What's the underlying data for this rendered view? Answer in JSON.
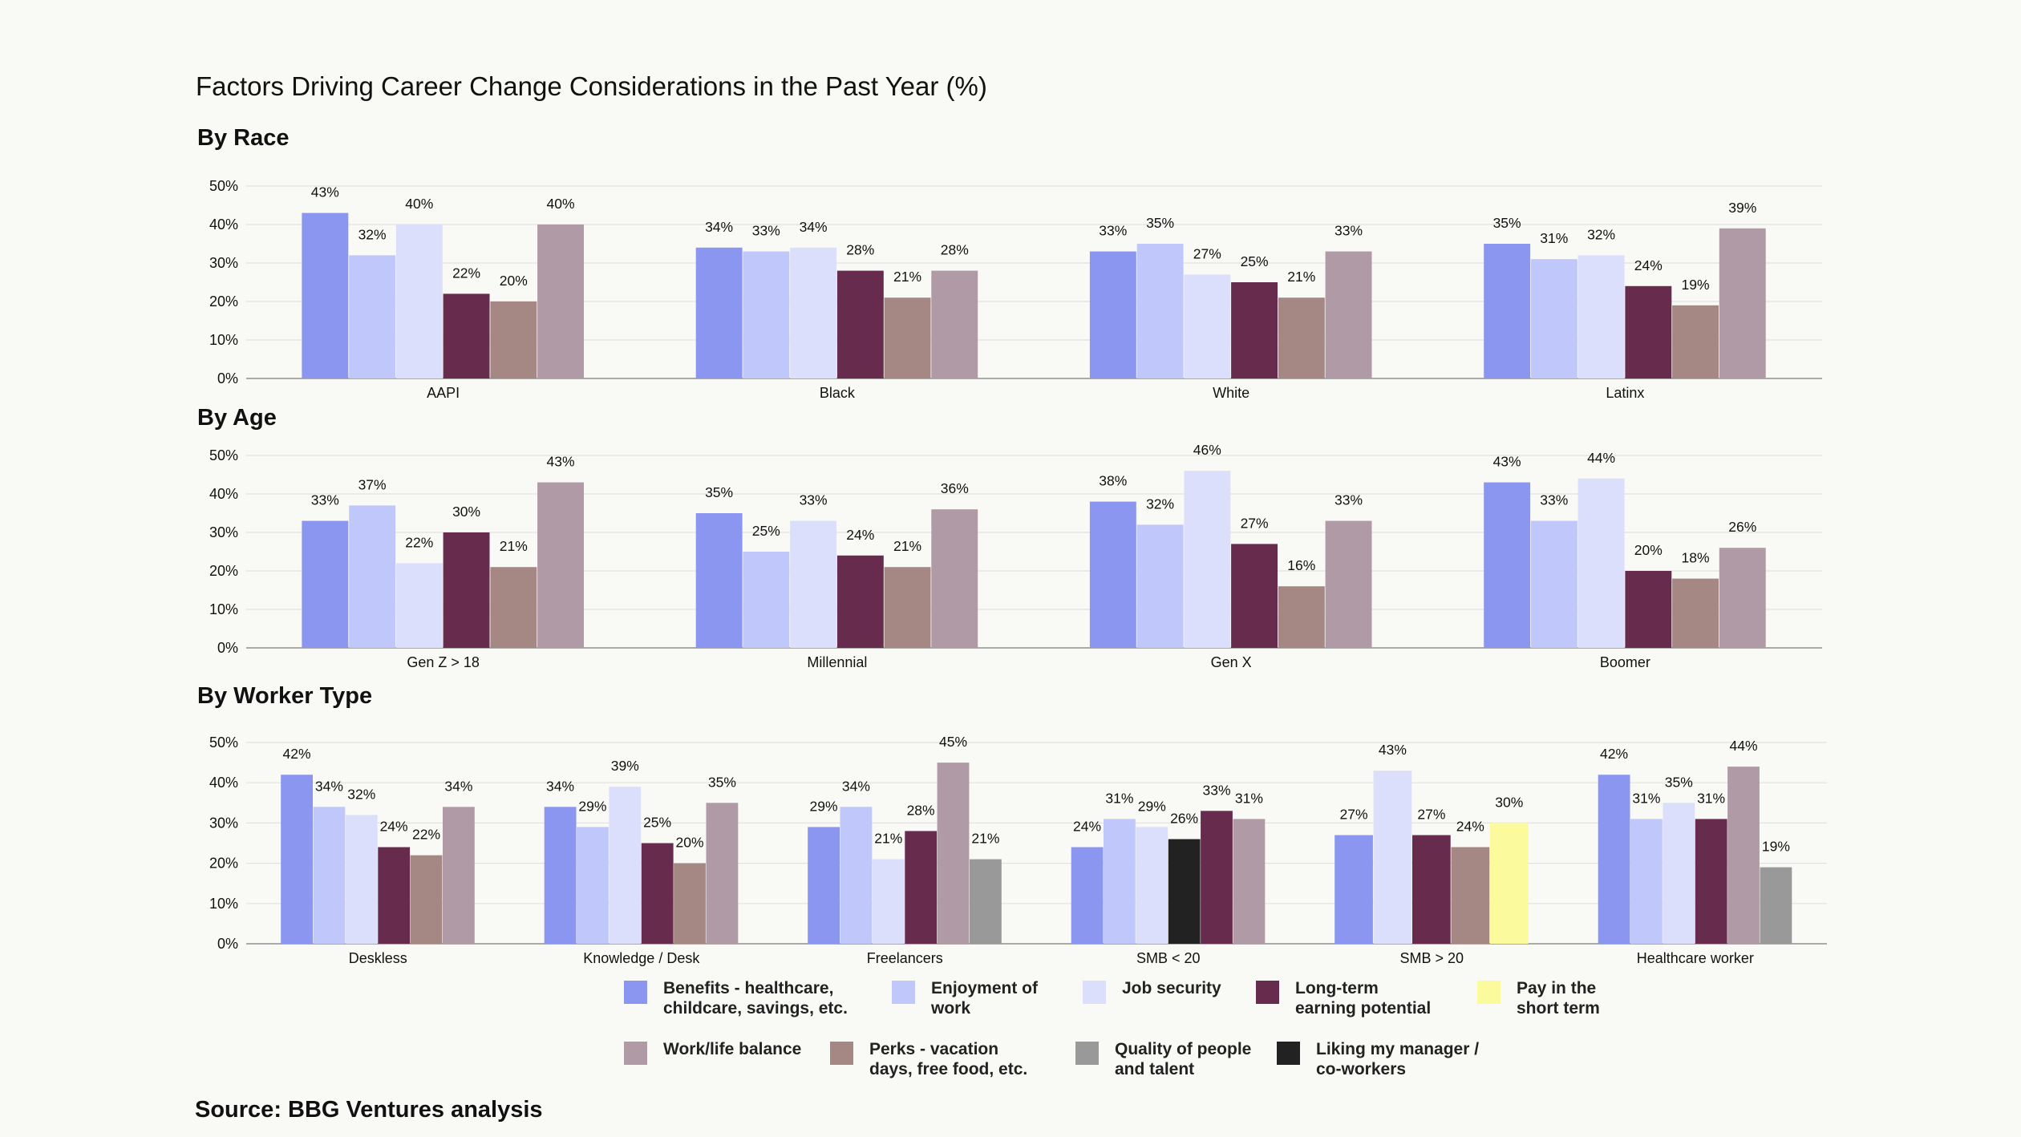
{
  "title": "Factors Driving Career Change Considerations in the Past Year (%)",
  "source": "Source: BBG Ventures analysis",
  "colors": {
    "benefits": "#8a96ef",
    "enjoyment": "#c0c7fb",
    "jobsec": "#dcdffc",
    "longterm": "#672b4e",
    "pay": "#fbfa9c",
    "worklife": "#b09aa6",
    "perks": "#a58884",
    "quality": "#999999",
    "manager": "#222222",
    "grid": "#e2e2e2",
    "axis": "#8f8f8f"
  },
  "legend": [
    {
      "key": "benefits",
      "lines": [
        "Benefits - healthcare,",
        "childcare, savings, etc."
      ]
    },
    {
      "key": "enjoyment",
      "lines": [
        "Enjoyment of",
        "work"
      ]
    },
    {
      "key": "jobsec",
      "lines": [
        "Job security"
      ]
    },
    {
      "key": "longterm",
      "lines": [
        "Long-term",
        "earning potential"
      ]
    },
    {
      "key": "pay",
      "lines": [
        "Pay in the",
        "short term"
      ]
    },
    {
      "key": "worklife",
      "lines": [
        "Work/life balance"
      ]
    },
    {
      "key": "perks",
      "lines": [
        "Perks - vacation",
        "days, free food, etc."
      ]
    },
    {
      "key": "quality",
      "lines": [
        "Quality of people",
        "and talent"
      ]
    },
    {
      "key": "manager",
      "lines": [
        "Liking my manager /",
        "co-workers"
      ]
    }
  ],
  "chart_data": [
    {
      "type": "bar",
      "title": "By Race",
      "ylim": [
        0,
        50
      ],
      "yticks": [
        "0%",
        "10%",
        "20%",
        "30%",
        "40%",
        "50%"
      ],
      "grid": true,
      "categories": [
        "AAPI",
        "Black",
        "White",
        "Latinx"
      ],
      "series": [
        {
          "name": "Benefits - healthcare, childcare, savings, etc.",
          "key": "benefits",
          "values": [
            43,
            34,
            33,
            35
          ],
          "labels": [
            "43%",
            "34%",
            "33%",
            "35%"
          ]
        },
        {
          "name": "Enjoyment of work",
          "key": "enjoyment",
          "values": [
            32,
            33,
            35,
            31
          ],
          "labels": [
            "32%",
            "33%",
            "35%",
            "31%"
          ]
        },
        {
          "name": "Job security",
          "key": "jobsec",
          "values": [
            40,
            34,
            27,
            32
          ],
          "labels": [
            "40%",
            "34%",
            "27%",
            "32%"
          ]
        },
        {
          "name": "Long-term earning potential",
          "key": "longterm",
          "values": [
            22,
            28,
            25,
            24
          ],
          "labels": [
            "22%",
            "28%",
            "25%",
            "24%"
          ]
        },
        {
          "name": "Perks - vacation days, free food, etc.",
          "key": "perks",
          "values": [
            20,
            21,
            21,
            19
          ],
          "labels": [
            "20%",
            "21%",
            "21%",
            "19%"
          ]
        },
        {
          "name": "Work/life balance",
          "key": "worklife",
          "values": [
            40,
            28,
            33,
            39
          ],
          "labels": [
            "40%",
            "28%",
            "33%",
            "39%"
          ]
        }
      ]
    },
    {
      "type": "bar",
      "title": "By Age",
      "ylim": [
        0,
        50
      ],
      "yticks": [
        "0%",
        "10%",
        "20%",
        "30%",
        "40%",
        "50%"
      ],
      "grid": true,
      "categories": [
        "Gen Z > 18",
        "Millennial",
        "Gen X",
        "Boomer"
      ],
      "series": [
        {
          "name": "Benefits - healthcare, childcare, savings, etc.",
          "key": "benefits",
          "values": [
            33,
            35,
            38,
            43
          ],
          "labels": [
            "33%",
            "35%",
            "38%",
            "43%"
          ]
        },
        {
          "name": "Enjoyment of work",
          "key": "enjoyment",
          "values": [
            37,
            25,
            32,
            33
          ],
          "labels": [
            "37%",
            "25%",
            "32%",
            "33%"
          ]
        },
        {
          "name": "Job security",
          "key": "jobsec",
          "values": [
            22,
            33,
            46,
            44
          ],
          "labels": [
            "22%",
            "33%",
            "46%",
            "44%"
          ]
        },
        {
          "name": "Long-term earning potential",
          "key": "longterm",
          "values": [
            30,
            24,
            27,
            20
          ],
          "labels": [
            "30%",
            "24%",
            "27%",
            "20%"
          ]
        },
        {
          "name": "Perks - vacation days, free food, etc.",
          "key": "perks",
          "values": [
            21,
            21,
            16,
            18
          ],
          "labels": [
            "21%",
            "21%",
            "16%",
            "18%"
          ]
        },
        {
          "name": "Work/life balance",
          "key": "worklife",
          "values": [
            43,
            36,
            33,
            26
          ],
          "labels": [
            "43%",
            "36%",
            "33%",
            "26%"
          ]
        }
      ]
    },
    {
      "type": "bar",
      "title": "By Worker Type",
      "ylim": [
        0,
        50
      ],
      "yticks": [
        "0%",
        "10%",
        "20%",
        "30%",
        "40%",
        "50%"
      ],
      "grid": true,
      "categories": [
        "Deskless",
        "Knowledge / Desk",
        "Freelancers",
        "SMB < 20",
        "SMB > 20",
        "Healthcare worker"
      ],
      "series": [
        {
          "name": "Benefits - healthcare, childcare, savings, etc.",
          "key": "benefits",
          "values": [
            42,
            34,
            29,
            24,
            27,
            42
          ],
          "labels": [
            "42%",
            "34%",
            "29%",
            "24%",
            "27%",
            "42%"
          ]
        },
        {
          "name": "Enjoyment of work",
          "key": "enjoyment",
          "values": [
            34,
            29,
            34,
            31,
            null,
            31
          ],
          "labels": [
            "34%",
            "29%",
            "34%",
            "31%",
            "",
            "31%"
          ]
        },
        {
          "name": "Job security",
          "key": "jobsec",
          "values": [
            32,
            39,
            21,
            29,
            43,
            35
          ],
          "labels": [
            "32%",
            "39%",
            "21%",
            "29%",
            "43%",
            "35%"
          ]
        },
        {
          "name": "Liking my manager / co-workers",
          "key": "manager",
          "values": [
            null,
            null,
            null,
            26,
            null,
            null
          ],
          "labels": [
            "",
            "",
            "",
            "26%",
            "",
            ""
          ]
        },
        {
          "name": "Long-term earning potential",
          "key": "longterm",
          "values": [
            24,
            25,
            28,
            33,
            27,
            31
          ],
          "labels": [
            "24%",
            "25%",
            "28%",
            "33%",
            "27%",
            "31%"
          ]
        },
        {
          "name": "Perks - vacation days, free food, etc.",
          "key": "perks",
          "values": [
            22,
            20,
            null,
            null,
            24,
            null
          ],
          "labels": [
            "22%",
            "20%",
            "",
            "",
            "24%",
            ""
          ]
        },
        {
          "name": "Work/life balance",
          "key": "worklife",
          "values": [
            34,
            35,
            45,
            31,
            null,
            44
          ],
          "labels": [
            "34%",
            "35%",
            "45%",
            "31%",
            "",
            "44%"
          ]
        },
        {
          "name": "Pay in the short term",
          "key": "pay",
          "values": [
            null,
            null,
            null,
            null,
            30,
            null
          ],
          "labels": [
            "",
            "",
            "",
            "",
            "30%",
            ""
          ]
        },
        {
          "name": "Quality of people and talent",
          "key": "quality",
          "values": [
            null,
            null,
            21,
            null,
            null,
            19
          ],
          "labels": [
            "",
            "",
            "21%",
            "",
            "",
            "19%"
          ]
        }
      ]
    }
  ]
}
